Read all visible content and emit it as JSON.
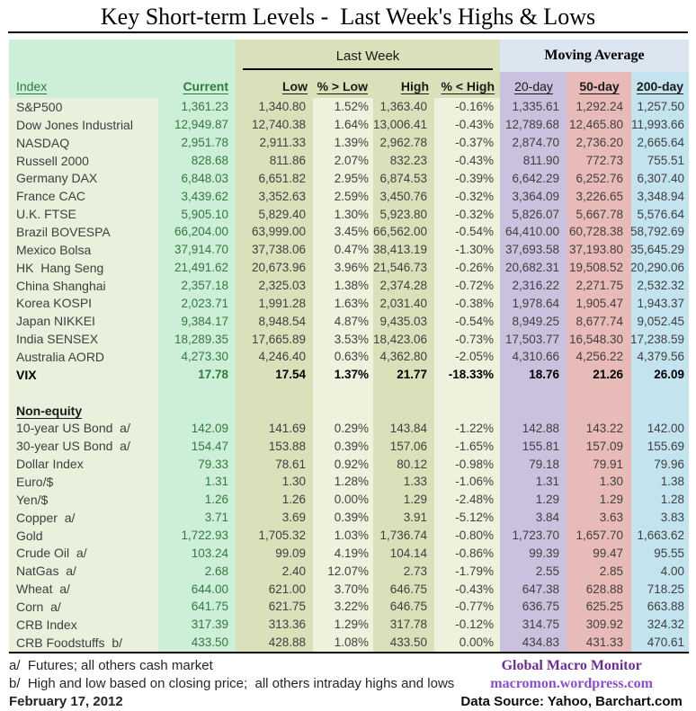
{
  "title": "Key Short-term Levels -  Last Week's Highs & Lows",
  "header": {
    "last_week_label": "Last Week",
    "moving_average_label": "Moving Average",
    "columns": [
      "Index",
      "Current",
      "Low",
      "% > Low",
      "High",
      "% < High",
      "20-day",
      "50-day",
      "200-day"
    ]
  },
  "sections": [
    {
      "name": "equity",
      "rows": [
        {
          "cells": [
            "S&P500",
            "1,361.23",
            "1,340.80",
            "1.52%",
            "1,363.40",
            "-0.16%",
            "1,335.61",
            "1,292.24",
            "1,257.50"
          ]
        },
        {
          "cells": [
            "Dow Jones Industrial",
            "12,949.87",
            "12,740.38",
            "1.64%",
            "13,006.41",
            "-0.43%",
            "12,789.68",
            "12,465.80",
            "11,993.66"
          ]
        },
        {
          "cells": [
            "NASDAQ",
            "2,951.78",
            "2,911.33",
            "1.39%",
            "2,962.78",
            "-0.37%",
            "2,874.70",
            "2,736.20",
            "2,665.64"
          ]
        },
        {
          "cells": [
            "Russell 2000",
            "828.68",
            "811.86",
            "2.07%",
            "832.23",
            "-0.43%",
            "811.90",
            "772.73",
            "755.51"
          ]
        },
        {
          "cells": [
            "Germany DAX",
            "6,848.03",
            "6,651.82",
            "2.95%",
            "6,874.53",
            "-0.39%",
            "6,642.29",
            "6,252.76",
            "6,307.40"
          ]
        },
        {
          "cells": [
            "France CAC",
            "3,439.62",
            "3,352.63",
            "2.59%",
            "3,450.76",
            "-0.32%",
            "3,364.09",
            "3,226.65",
            "3,348.94"
          ]
        },
        {
          "cells": [
            "U.K. FTSE",
            "5,905.10",
            "5,829.40",
            "1.30%",
            "5,923.80",
            "-0.32%",
            "5,826.07",
            "5,667.78",
            "5,576.64"
          ]
        },
        {
          "cells": [
            "Brazil BOVESPA",
            "66,204.00",
            "63,999.00",
            "3.45%",
            "66,562.00",
            "-0.54%",
            "64,410.00",
            "60,728.38",
            "58,792.69"
          ]
        },
        {
          "cells": [
            "Mexico Bolsa",
            "37,914.70",
            "37,738.06",
            "0.47%",
            "38,413.19",
            "-1.30%",
            "37,693.58",
            "37,193.80",
            "35,645.29"
          ]
        },
        {
          "cells": [
            "HK  Hang Seng",
            "21,491.62",
            "20,673.96",
            "3.96%",
            "21,546.73",
            "-0.26%",
            "20,682.31",
            "19,508.52",
            "20,290.06"
          ]
        },
        {
          "cells": [
            "China Shanghai",
            "2,357.18",
            "2,325.03",
            "1.38%",
            "2,374.28",
            "-0.72%",
            "2,316.22",
            "2,271.75",
            "2,532.32"
          ]
        },
        {
          "cells": [
            "Korea KOSPI",
            "2,023.71",
            "1,991.28",
            "1.63%",
            "2,031.40",
            "-0.38%",
            "1,978.64",
            "1,905.47",
            "1,943.37"
          ]
        },
        {
          "cells": [
            "Japan NIKKEI",
            "9,384.17",
            "8,948.54",
            "4.87%",
            "9,435.03",
            "-0.54%",
            "8,949.25",
            "8,677.74",
            "9,052.45"
          ]
        },
        {
          "cells": [
            "India SENSEX",
            "18,289.35",
            "17,665.89",
            "3.53%",
            "18,423.06",
            "-0.73%",
            "17,503.77",
            "16,548.30",
            "17,238.59"
          ]
        },
        {
          "cells": [
            "Australia AORD",
            "4,273.30",
            "4,246.40",
            "0.63%",
            "4,362.80",
            "-2.05%",
            "4,310.66",
            "4,256.22",
            "4,379.56"
          ]
        },
        {
          "cells": [
            "VIX",
            "17.78",
            "17.54",
            "1.37%",
            "21.77",
            "-18.33%",
            "18.76",
            "21.26",
            "26.09"
          ],
          "bold": true
        }
      ]
    },
    {
      "name": "non_equity",
      "spacer_before": true,
      "heading": "Non-equity",
      "rows": [
        {
          "cells": [
            "10-year US Bond  a/",
            "142.09",
            "141.69",
            "0.29%",
            "143.84",
            "-1.22%",
            "142.88",
            "143.22",
            "142.00"
          ]
        },
        {
          "cells": [
            "30-year US Bond  a/",
            "154.47",
            "153.88",
            "0.39%",
            "157.06",
            "-1.65%",
            "155.81",
            "157.09",
            "155.69"
          ]
        },
        {
          "cells": [
            "Dollar Index",
            "79.33",
            "78.61",
            "0.92%",
            "80.12",
            "-0.98%",
            "79.18",
            "79.91",
            "79.96"
          ]
        },
        {
          "cells": [
            "Euro/$",
            "1.31",
            "1.30",
            "1.28%",
            "1.33",
            "-1.06%",
            "1.31",
            "1.30",
            "1.38"
          ]
        },
        {
          "cells": [
            "Yen/$",
            "1.26",
            "1.26",
            "0.00%",
            "1.29",
            "-2.48%",
            "1.29",
            "1.29",
            "1.28"
          ]
        },
        {
          "cells": [
            "Copper  a/",
            "3.71",
            "3.69",
            "0.39%",
            "3.91",
            "-5.12%",
            "3.84",
            "3.63",
            "3.83"
          ]
        },
        {
          "cells": [
            "Gold",
            "1,722.93",
            "1,705.32",
            "1.03%",
            "1,736.74",
            "-0.80%",
            "1,723.70",
            "1,657.70",
            "1,663.62"
          ]
        },
        {
          "cells": [
            "Crude Oil  a/",
            "103.24",
            "99.09",
            "4.19%",
            "104.14",
            "-0.86%",
            "99.39",
            "99.47",
            "95.55"
          ]
        },
        {
          "cells": [
            "NatGas  a/",
            "2.68",
            "2.40",
            "12.07%",
            "2.73",
            "-1.79%",
            "2.55",
            "2.85",
            "4.00"
          ]
        },
        {
          "cells": [
            "Wheat  a/",
            "644.00",
            "621.00",
            "3.70%",
            "646.75",
            "-0.43%",
            "647.38",
            "628.88",
            "718.25"
          ]
        },
        {
          "cells": [
            "Corn  a/",
            "641.75",
            "621.75",
            "3.22%",
            "646.75",
            "-0.77%",
            "636.75",
            "625.25",
            "663.88"
          ]
        },
        {
          "cells": [
            "CRB Index",
            "317.39",
            "313.36",
            "1.29%",
            "317.78",
            "-0.12%",
            "314.75",
            "309.92",
            "324.32"
          ]
        },
        {
          "cells": [
            "CRB Foodstuffs  b/",
            "433.50",
            "428.88",
            "1.08%",
            "433.50",
            "0.00%",
            "434.83",
            "431.33",
            "470.61"
          ]
        }
      ]
    }
  ],
  "footer": {
    "note_a": "a/  Futures; all others cash market",
    "note_b": "b/  High and low based on closing price;  all others intraday highs and lows",
    "date": "February 17, 2012",
    "brand": "Global Macro Monitor",
    "brand_url": "macromon.wordpress.com",
    "data_source": "Data Source: Yahoo, Barchart.com"
  },
  "colors": {
    "label_column": "#e9f0dc",
    "current_column": "#cdeed7",
    "low_high_columns": "#d9e1ba",
    "percent_columns": "#edf2dc",
    "ma20_column": "#c9c1dd",
    "ma50_column": "#e8bab8",
    "ma200_column": "#c3e3ef",
    "moving_average_band": "#dce6f1",
    "current_text": "#35793f",
    "header_green_text": "#2e7d3e",
    "brand_purple": "#6a2d91",
    "brand_url_purple": "#8a50c8"
  }
}
